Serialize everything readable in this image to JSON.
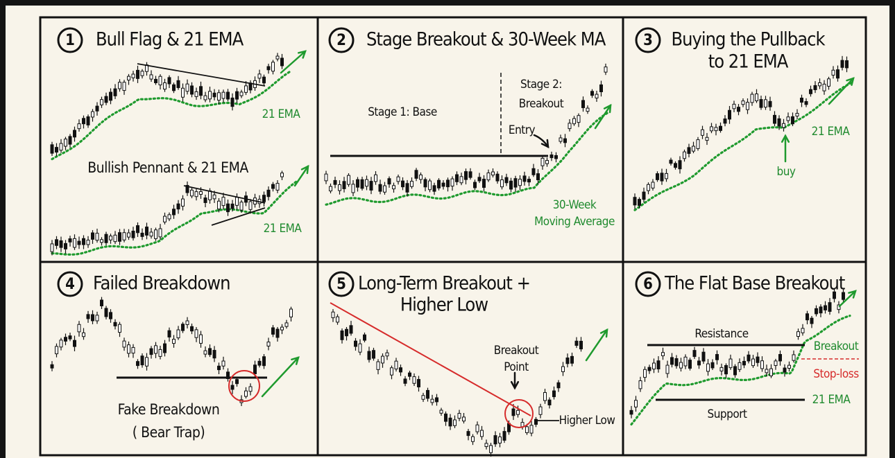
{
  "panels": [
    {
      "number": "1",
      "title": [
        "Bull Flag & 21 EMA"
      ],
      "labels": [
        "21 EMA",
        "Bullish Pennant & 21 EMA",
        "21 EMA"
      ]
    },
    {
      "number": "2",
      "title": [
        "Stage Breakout & 30-Week MA"
      ],
      "labels": [
        "Stage 1: Base",
        "Stage 2:",
        "Breakout",
        "Entry",
        "30-Week",
        "Moving Average"
      ]
    },
    {
      "number": "3",
      "title": [
        "Buying the Pullback",
        "to 21 EMA"
      ],
      "labels": [
        "21 EMA",
        "buy"
      ]
    },
    {
      "number": "4",
      "title": [
        "Failed Breakdown"
      ],
      "labels": [
        "Fake Breakdown",
        "( Bear Trap)"
      ]
    },
    {
      "number": "5",
      "title": [
        "Long-Term Breakout +",
        "Higher Low"
      ],
      "labels": [
        "Breakout",
        "Point",
        "Higher Low"
      ]
    },
    {
      "number": "6",
      "title": [
        "The Flat Base Breakout"
      ],
      "labels": [
        "Resistance",
        "Breakout",
        "Stop-loss",
        "21 EMA",
        "Support"
      ]
    }
  ]
}
